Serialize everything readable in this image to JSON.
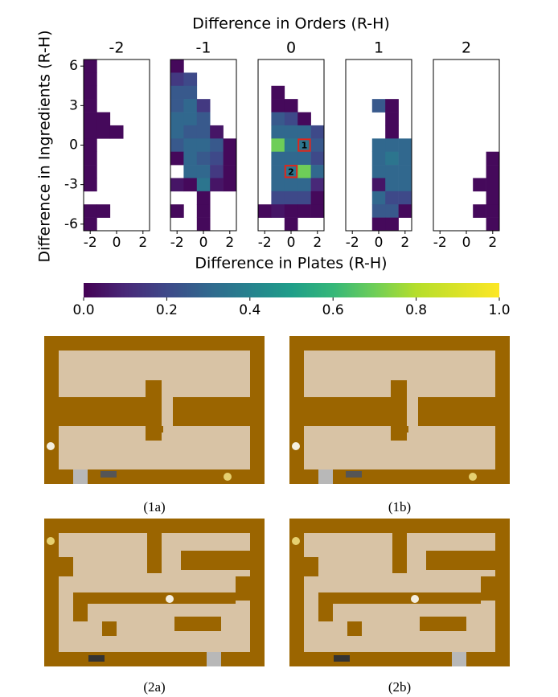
{
  "chart_data": {
    "type": "heatmap",
    "title": "Difference in Orders (R-H)",
    "xlabel": "Difference in Plates (R-H)",
    "ylabel": "Difference in Ingredients (R-H)",
    "xlim": [
      -2.5,
      2.5
    ],
    "ylim": [
      -6.5,
      6.5
    ],
    "xticks": [
      -2,
      0,
      2
    ],
    "yticks": [
      -6,
      -3,
      0,
      3,
      6
    ],
    "panels": [
      {
        "name": "-2",
        "cells": [
          [
            -2,
            6,
            0.02
          ],
          [
            -2,
            5,
            0.02
          ],
          [
            -2,
            4,
            0.02
          ],
          [
            -2,
            3,
            0.02
          ],
          [
            -2,
            2,
            0.02
          ],
          [
            -1,
            2,
            0.02
          ],
          [
            -2,
            1,
            0.02
          ],
          [
            -1,
            1,
            0.02
          ],
          [
            0,
            1,
            0.02
          ],
          [
            -2,
            0,
            0.02
          ],
          [
            -2,
            -1,
            0.02
          ],
          [
            -2,
            -2,
            0.02
          ],
          [
            -2,
            -3,
            0.02
          ],
          [
            -2,
            -5,
            0.02
          ],
          [
            -1,
            -5,
            0.02
          ],
          [
            -2,
            -6,
            0.02
          ]
        ]
      },
      {
        "name": "-1",
        "cells": [
          [
            -2,
            6,
            0.02
          ],
          [
            -2,
            5,
            0.15
          ],
          [
            -1,
            5,
            0.2
          ],
          [
            -2,
            4,
            0.25
          ],
          [
            -1,
            4,
            0.25
          ],
          [
            -2,
            3,
            0.25
          ],
          [
            -1,
            3,
            0.3
          ],
          [
            0,
            3,
            0.15
          ],
          [
            -2,
            2,
            0.3
          ],
          [
            -1,
            2,
            0.3
          ],
          [
            0,
            2,
            0.25
          ],
          [
            -2,
            1,
            0.3
          ],
          [
            -1,
            1,
            0.25
          ],
          [
            0,
            1,
            0.25
          ],
          [
            1,
            1,
            0.05
          ],
          [
            -2,
            0,
            0.25
          ],
          [
            -1,
            0,
            0.3
          ],
          [
            0,
            0,
            0.3
          ],
          [
            1,
            0,
            0.25
          ],
          [
            2,
            0,
            0.02
          ],
          [
            -2,
            -1,
            0.02
          ],
          [
            -1,
            -1,
            0.3
          ],
          [
            0,
            -1,
            0.25
          ],
          [
            1,
            -1,
            0.2
          ],
          [
            2,
            -1,
            0.02
          ],
          [
            -1,
            -2,
            0.3
          ],
          [
            0,
            -2,
            0.3
          ],
          [
            1,
            -2,
            0.15
          ],
          [
            2,
            -2,
            0.02
          ],
          [
            -2,
            -3,
            0.05
          ],
          [
            -1,
            -3,
            0.02
          ],
          [
            0,
            -3,
            0.35
          ],
          [
            1,
            -3,
            0.05
          ],
          [
            2,
            -3,
            0.02
          ],
          [
            0,
            -4,
            0.02
          ],
          [
            -2,
            -5,
            0.02
          ],
          [
            0,
            -5,
            0.02
          ],
          [
            0,
            -6,
            0.02
          ]
        ]
      },
      {
        "name": "0",
        "cells": [
          [
            -1,
            4,
            0.02
          ],
          [
            -1,
            3,
            0.02
          ],
          [
            0,
            3,
            0.02
          ],
          [
            -1,
            2,
            0.25
          ],
          [
            0,
            2,
            0.2
          ],
          [
            1,
            2,
            0.02
          ],
          [
            -1,
            1,
            0.3
          ],
          [
            0,
            1,
            0.3
          ],
          [
            1,
            1,
            0.3
          ],
          [
            2,
            1,
            0.2
          ],
          [
            -1,
            0,
            0.7
          ],
          [
            0,
            0,
            0.35
          ],
          [
            1,
            0,
            0.35
          ],
          [
            2,
            0,
            0.25
          ],
          [
            -1,
            -1,
            0.3
          ],
          [
            0,
            -1,
            0.3
          ],
          [
            1,
            -1,
            0.3
          ],
          [
            2,
            -1,
            0.2
          ],
          [
            -1,
            -2,
            0.3
          ],
          [
            0,
            -2,
            0.35
          ],
          [
            1,
            -2,
            0.7
          ],
          [
            2,
            -2,
            0.3
          ],
          [
            -1,
            -3,
            0.3
          ],
          [
            0,
            -3,
            0.3
          ],
          [
            1,
            -3,
            0.3
          ],
          [
            2,
            -3,
            0.1
          ],
          [
            -1,
            -4,
            0.2
          ],
          [
            0,
            -4,
            0.2
          ],
          [
            1,
            -4,
            0.2
          ],
          [
            2,
            -4,
            0.02
          ],
          [
            -2,
            -5,
            0.02
          ],
          [
            -1,
            -5,
            0.05
          ],
          [
            0,
            -5,
            0.02
          ],
          [
            1,
            -5,
            0.02
          ],
          [
            2,
            -5,
            0.02
          ],
          [
            0,
            -6,
            0.02
          ]
        ]
      },
      {
        "name": "1",
        "cells": [
          [
            0,
            3,
            0.25
          ],
          [
            1,
            3,
            0.02
          ],
          [
            1,
            2,
            0.02
          ],
          [
            1,
            1,
            0.02
          ],
          [
            0,
            0,
            0.3
          ],
          [
            1,
            0,
            0.3
          ],
          [
            2,
            0,
            0.3
          ],
          [
            0,
            -1,
            0.3
          ],
          [
            1,
            -1,
            0.35
          ],
          [
            2,
            -1,
            0.3
          ],
          [
            0,
            -2,
            0.3
          ],
          [
            1,
            -2,
            0.3
          ],
          [
            2,
            -2,
            0.3
          ],
          [
            0,
            -3,
            0.05
          ],
          [
            1,
            -3,
            0.3
          ],
          [
            2,
            -3,
            0.3
          ],
          [
            0,
            -4,
            0.3
          ],
          [
            1,
            -4,
            0.2
          ],
          [
            2,
            -4,
            0.2
          ],
          [
            0,
            -5,
            0.25
          ],
          [
            1,
            -5,
            0.25
          ],
          [
            2,
            -5,
            0.02
          ],
          [
            0,
            -6,
            0.02
          ],
          [
            1,
            -6,
            0.02
          ]
        ]
      },
      {
        "name": "2",
        "cells": [
          [
            2,
            -1,
            0.02
          ],
          [
            2,
            -2,
            0.02
          ],
          [
            1,
            -3,
            0.02
          ],
          [
            2,
            -3,
            0.02
          ],
          [
            2,
            -4,
            0.02
          ],
          [
            1,
            -5,
            0.02
          ],
          [
            2,
            -5,
            0.02
          ],
          [
            2,
            -6,
            0.02
          ]
        ]
      }
    ],
    "highlights": [
      {
        "label": "1",
        "x": 1,
        "y": 0
      },
      {
        "label": "2",
        "x": 0,
        "y": -2
      }
    ],
    "colorbar": {
      "lim": [
        0,
        1
      ],
      "ticks": [
        {
          "value": 0,
          "label": "0.0"
        },
        {
          "value": 0.2,
          "label": "0.2"
        },
        {
          "value": 0.4,
          "label": "0.4"
        },
        {
          "value": 0.6,
          "label": "0.6"
        },
        {
          "value": 0.8,
          "label": "0.8"
        },
        {
          "value": 1,
          "label": "1.0"
        }
      ]
    }
  },
  "figures": {
    "captions": [
      "(1a)",
      "(1b)",
      "(2a)",
      "(2b)"
    ]
  }
}
